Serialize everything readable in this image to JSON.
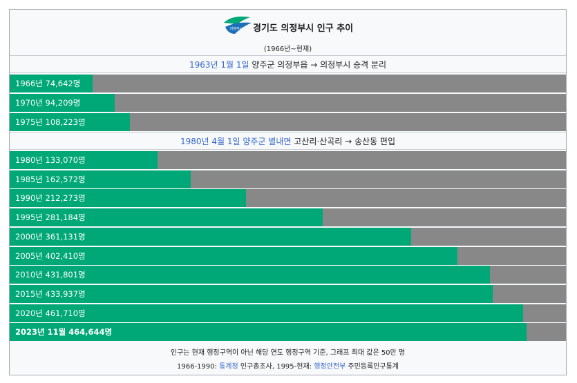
{
  "header": {
    "title": "경기도 의정부시 인구 추이",
    "subtitle": "(1966년~현재)",
    "logo_text": "의정부시"
  },
  "sections": [
    {
      "before_row": 0,
      "parts": [
        {
          "text": "1963년 1월 1일",
          "link": true
        },
        {
          "text": " 양주군 의정부읍 → 의정부시 승격 분리",
          "link": false
        }
      ]
    },
    {
      "before_row": 3,
      "parts": [
        {
          "text": "1980년 4월 1일",
          "link": true
        },
        {
          "text": " ",
          "link": false
        },
        {
          "text": "양주군 별내면",
          "link": true
        },
        {
          "text": " 고산리·산곡리 → 송산동 편입",
          "link": false
        }
      ]
    }
  ],
  "chart_data": {
    "type": "bar",
    "orientation": "horizontal",
    "max_value": 500000,
    "categories": [
      "1966년",
      "1970년",
      "1975년",
      "1980년",
      "1985년",
      "1990년",
      "1995년",
      "2000년",
      "2005년",
      "2010년",
      "2015년",
      "2020년",
      "2023년 11월"
    ],
    "values": [
      74642,
      94209,
      108223,
      133070,
      162572,
      212273,
      281184,
      361131,
      402410,
      431801,
      433937,
      461710,
      464644
    ],
    "labels": [
      "1966년 74,642명",
      "1970년 94,209명",
      "1975년 108,223명",
      "1980년 133,070명",
      "1985년 162,572명",
      "1990년 212,273명",
      "1995년 281,184명",
      "2000년 361,131명",
      "2005년 402,410명",
      "2010년 431,801명",
      "2015년 433,937명",
      "2020년 461,710명",
      "2023년 11월 464,644명"
    ],
    "bold_last": true,
    "colors": {
      "bar": "#00a877",
      "track": "#888888"
    }
  },
  "footer": {
    "line1": "인구는 현재 행정구역이 아닌 해당 연도 행정구역 기준, 그래프 최대 값은 50만 명",
    "line2_parts": [
      {
        "text": "1966-1990: ",
        "link": false
      },
      {
        "text": "통계청",
        "link": true
      },
      {
        "text": " 인구총조사, 1995-현재: ",
        "link": false
      },
      {
        "text": "행정안전부",
        "link": true
      },
      {
        "text": " 주민등록인구통계",
        "link": false
      }
    ]
  }
}
